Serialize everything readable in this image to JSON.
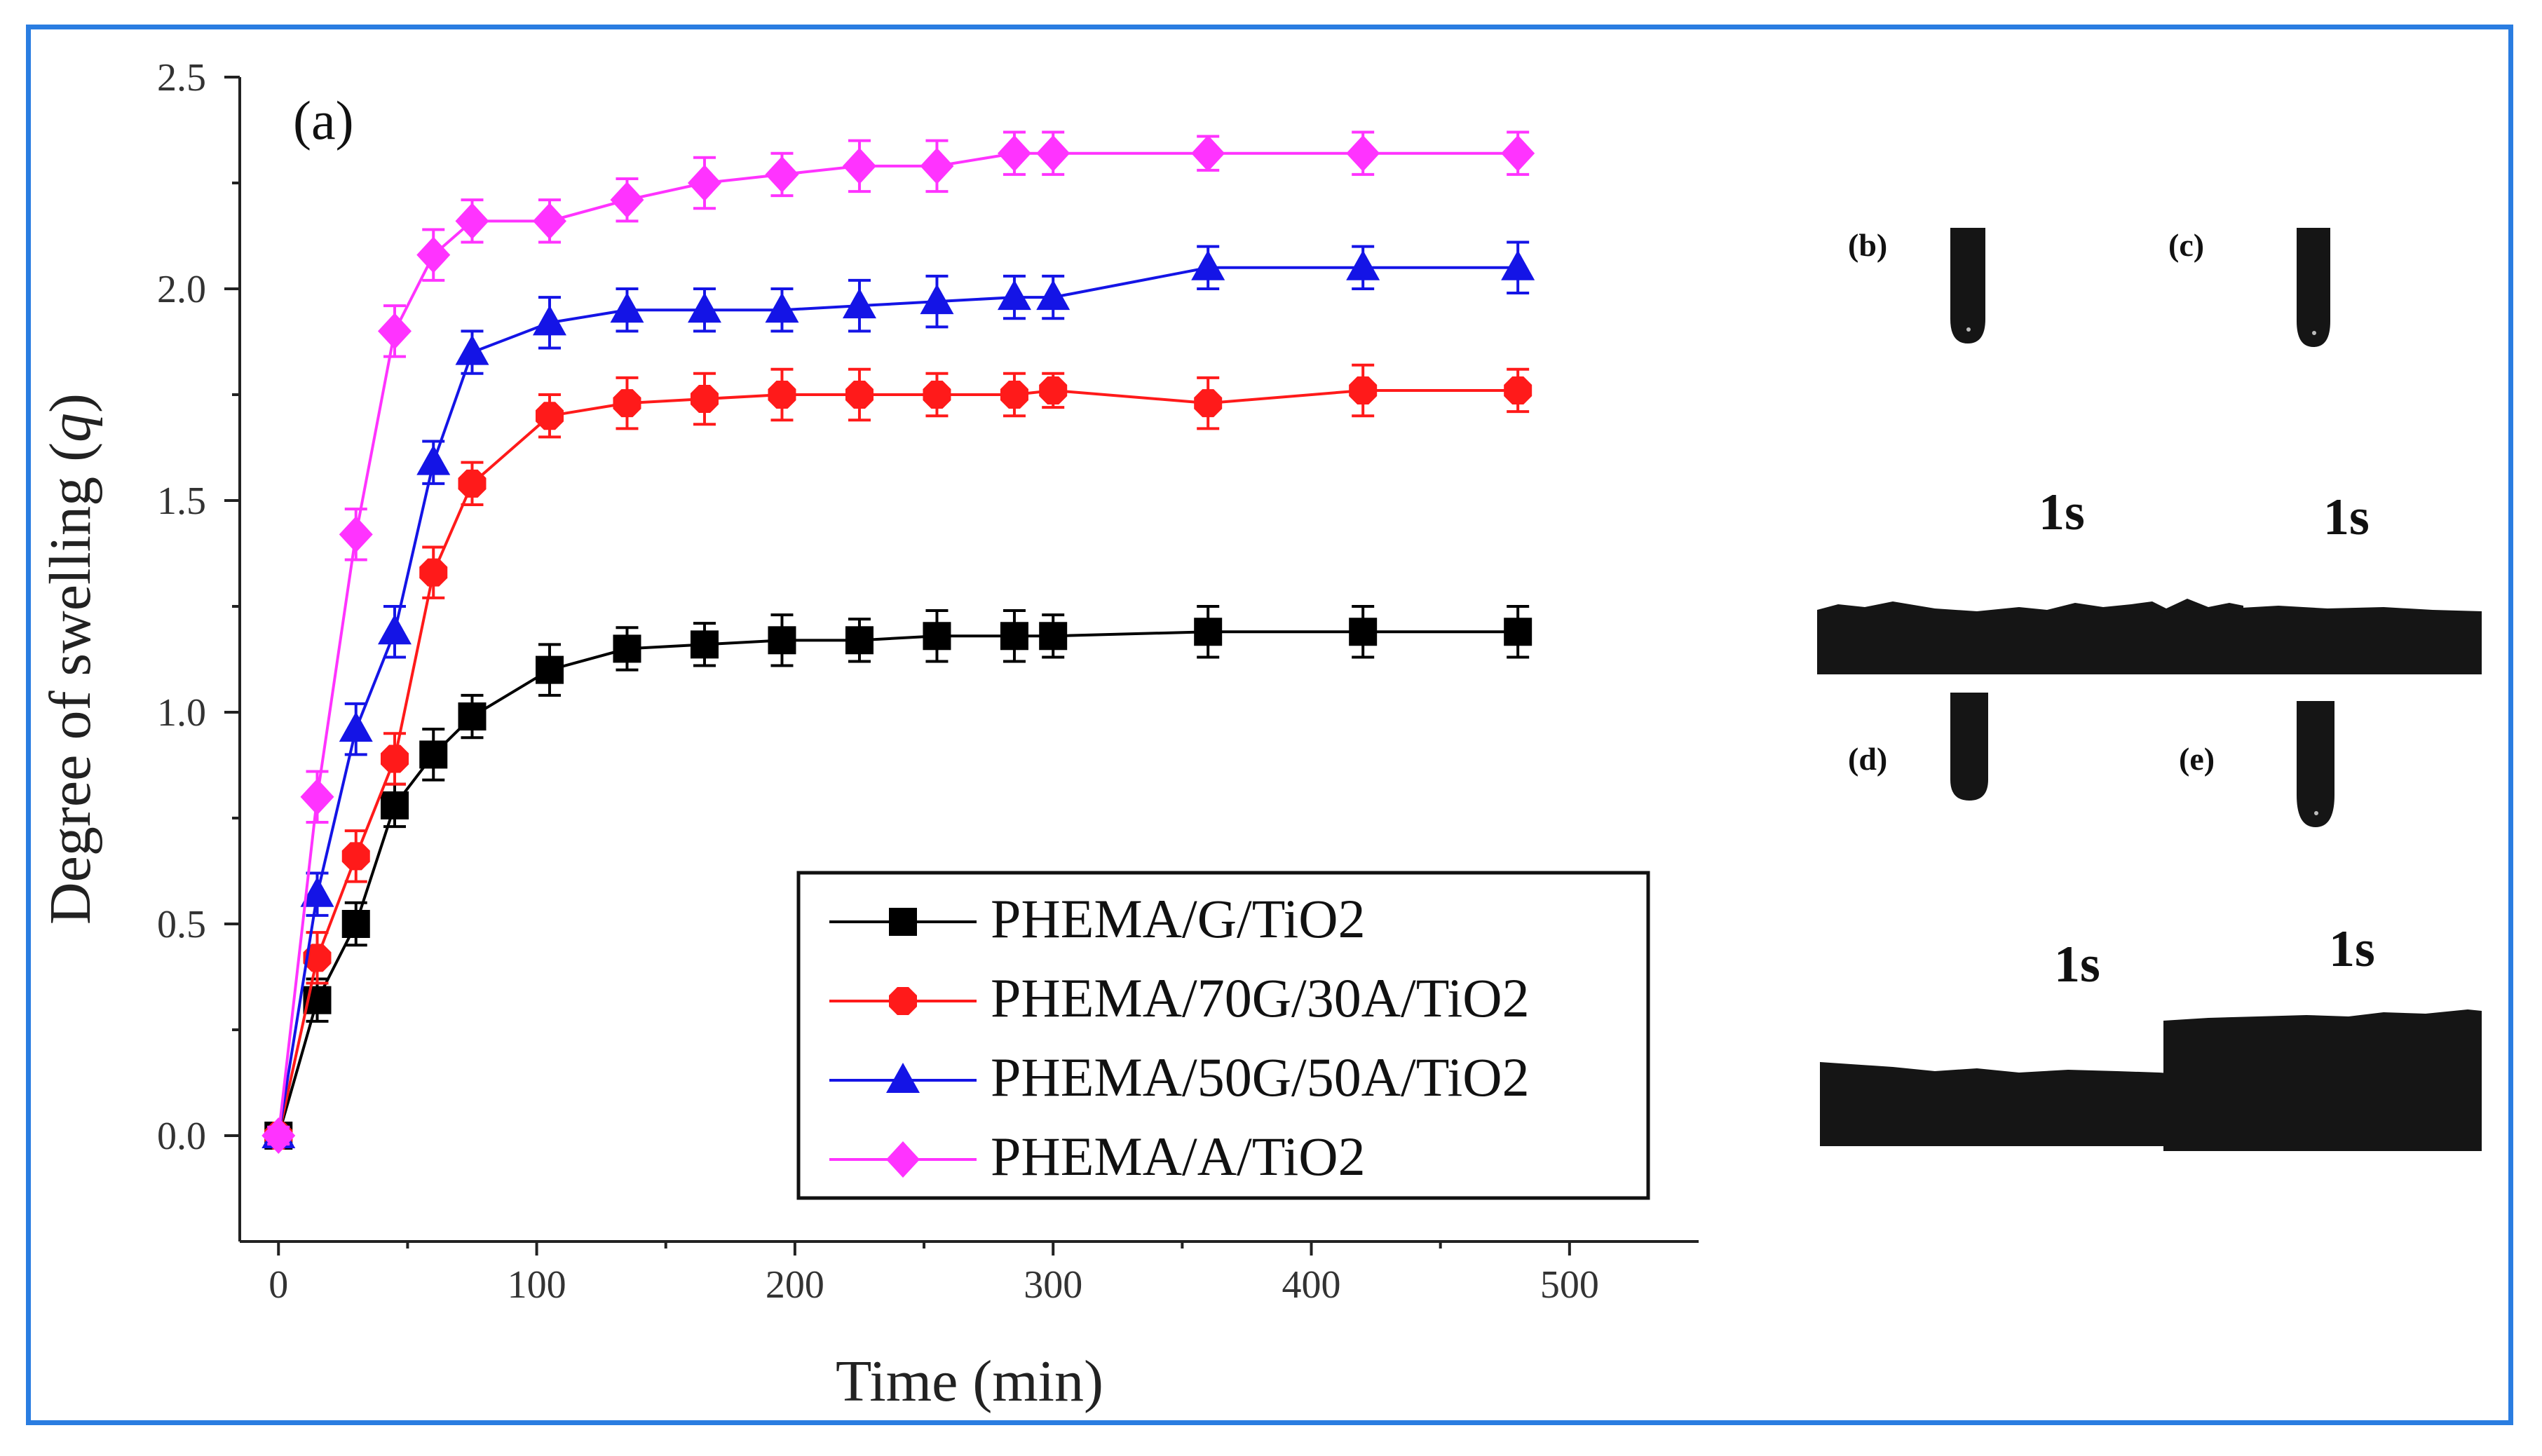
{
  "chart_data": {
    "type": "line",
    "title": "",
    "panel_label": "(a)",
    "xlabel": "Time (min)",
    "ylabel_prefix": "Degree of swelling (",
    "ylabel_symbol": "q",
    "ylabel_suffix": ")",
    "xlim": [
      -15,
      550
    ],
    "ylim": [
      -0.25,
      2.5
    ],
    "xticks": [
      0,
      100,
      200,
      300,
      400,
      500
    ],
    "xtick_labels": [
      "0",
      "100",
      "200",
      "300",
      "400",
      "500"
    ],
    "yticks": [
      0.0,
      0.5,
      1.0,
      1.5,
      2.0,
      2.5
    ],
    "ytick_labels": [
      "0.0",
      "0.5",
      "1.0",
      "1.5",
      "2.0",
      "2.5"
    ],
    "legend_position": "bottom-right",
    "x": [
      0,
      15,
      30,
      45,
      60,
      75,
      105,
      135,
      165,
      195,
      225,
      255,
      285,
      300,
      360,
      420,
      480
    ],
    "series": [
      {
        "name": "PHEMA/G/TiO2",
        "color": "#000000",
        "marker": "square",
        "values": [
          0.0,
          0.32,
          0.5,
          0.78,
          0.9,
          0.99,
          1.1,
          1.15,
          1.16,
          1.17,
          1.17,
          1.18,
          1.18,
          1.18,
          1.19,
          1.19,
          1.19
        ],
        "errors": [
          0.02,
          0.05,
          0.05,
          0.05,
          0.06,
          0.05,
          0.06,
          0.05,
          0.05,
          0.06,
          0.05,
          0.06,
          0.06,
          0.05,
          0.06,
          0.06,
          0.06
        ]
      },
      {
        "name": "PHEMA/70G/30A/TiO2",
        "color": "#ff1a1a",
        "marker": "circle",
        "values": [
          0.0,
          0.42,
          0.66,
          0.89,
          1.33,
          1.54,
          1.7,
          1.73,
          1.74,
          1.75,
          1.75,
          1.75,
          1.75,
          1.76,
          1.73,
          1.76,
          1.76
        ],
        "errors": [
          0.02,
          0.06,
          0.06,
          0.06,
          0.06,
          0.05,
          0.05,
          0.06,
          0.06,
          0.06,
          0.06,
          0.05,
          0.05,
          0.04,
          0.06,
          0.06,
          0.05
        ]
      },
      {
        "name": "PHEMA/50G/50A/TiO2",
        "color": "#1414e6",
        "marker": "triangle",
        "values": [
          0.0,
          0.57,
          0.96,
          1.19,
          1.59,
          1.85,
          1.92,
          1.95,
          1.95,
          1.95,
          1.96,
          1.97,
          1.98,
          1.98,
          2.05,
          2.05,
          2.05
        ],
        "errors": [
          0.02,
          0.05,
          0.06,
          0.06,
          0.05,
          0.05,
          0.06,
          0.05,
          0.05,
          0.05,
          0.06,
          0.06,
          0.05,
          0.05,
          0.05,
          0.05,
          0.06
        ]
      },
      {
        "name": "PHEMA/A/TiO2",
        "color": "#ff33ff",
        "marker": "diamond",
        "values": [
          0.0,
          0.8,
          1.42,
          1.9,
          2.08,
          2.16,
          2.16,
          2.21,
          2.25,
          2.27,
          2.29,
          2.29,
          2.32,
          2.32,
          2.32,
          2.32,
          2.32
        ],
        "errors": [
          0.02,
          0.06,
          0.06,
          0.06,
          0.06,
          0.05,
          0.05,
          0.05,
          0.06,
          0.05,
          0.06,
          0.06,
          0.05,
          0.05,
          0.04,
          0.05,
          0.05
        ]
      }
    ]
  },
  "contact_angle_panels": [
    {
      "label": "(b)",
      "time": "1s"
    },
    {
      "label": "(c)",
      "time": "1s"
    },
    {
      "label": "(d)",
      "time": "1s"
    },
    {
      "label": "(e)",
      "time": "1s"
    }
  ]
}
